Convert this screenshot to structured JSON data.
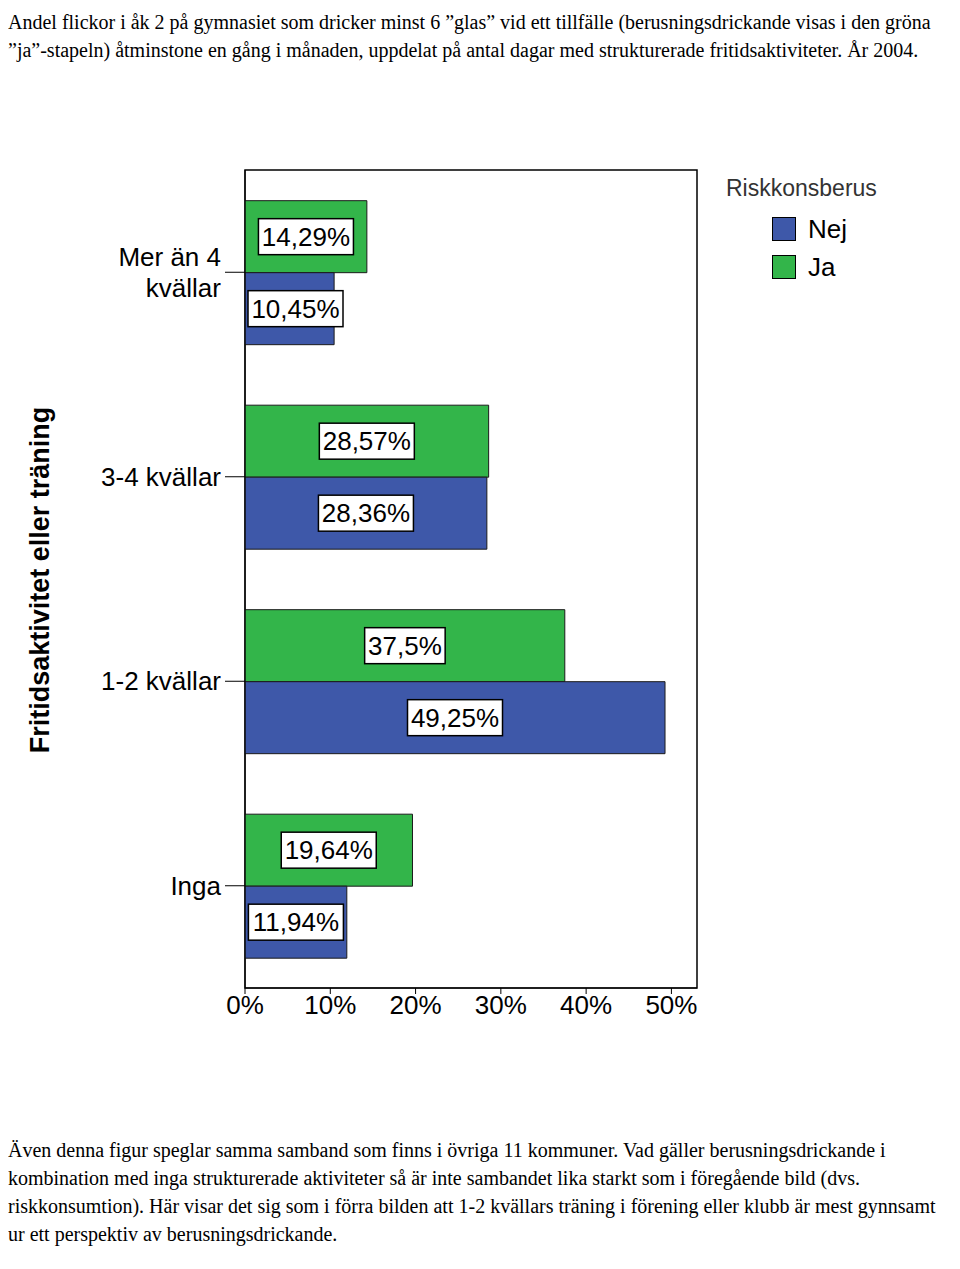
{
  "chart_data": {
    "type": "bar",
    "orientation": "horizontal",
    "title": "Andel flickor i åk 2 på gymnasiet som dricker minst 6 ”glas” vid ett tillfälle (berusningsdrickande visas i den gröna ”ja”-stapeln) åtminstone en gång i månaden, uppdelat på antal dagar med strukturerade fritidsaktiviteter. År 2004.",
    "caption": "Även denna figur speglar samma samband som finns i övriga 11 kommuner. Vad gäller berusningsdrickande i kombination med inga strukturerade aktiviteter så är inte sambandet lika starkt som i föregående bild (dvs. riskkonsumtion). Här visar det sig som i förra bilden att 1-2 kvällars träning i förening eller klubb är mest gynnsamt ur ett perspektiv av berusningsdrickande.",
    "y_label": "Fritidsaktivitet eller träning",
    "legend_title": "Riskkonsberus",
    "legend": "upper right",
    "categories": [
      "Mer än 4 kvällar",
      "3-4 kvällar",
      "1-2 kvällar",
      "Inga"
    ],
    "series": [
      {
        "name": "Nej",
        "color": "#3e58a9",
        "values": [
          10.45,
          28.36,
          49.25,
          11.94
        ],
        "value_labels": [
          "10,45%",
          "28,36%",
          "49,25%",
          "11,94%"
        ]
      },
      {
        "name": "Ja",
        "color": "#33b54a",
        "values": [
          14.29,
          28.57,
          37.5,
          19.64
        ],
        "value_labels": [
          "14,29%",
          "28,57%",
          "37,5%",
          "19,64%"
        ]
      }
    ],
    "xlim": [
      0,
      53
    ],
    "xticks": [
      {
        "value": 0,
        "label": "0%"
      },
      {
        "value": 10,
        "label": "10%"
      },
      {
        "value": 20,
        "label": "20%"
      },
      {
        "value": 30,
        "label": "30%"
      },
      {
        "value": 40,
        "label": "40%"
      },
      {
        "value": 50,
        "label": "50%"
      }
    ],
    "grid": false,
    "data_labels": true
  }
}
